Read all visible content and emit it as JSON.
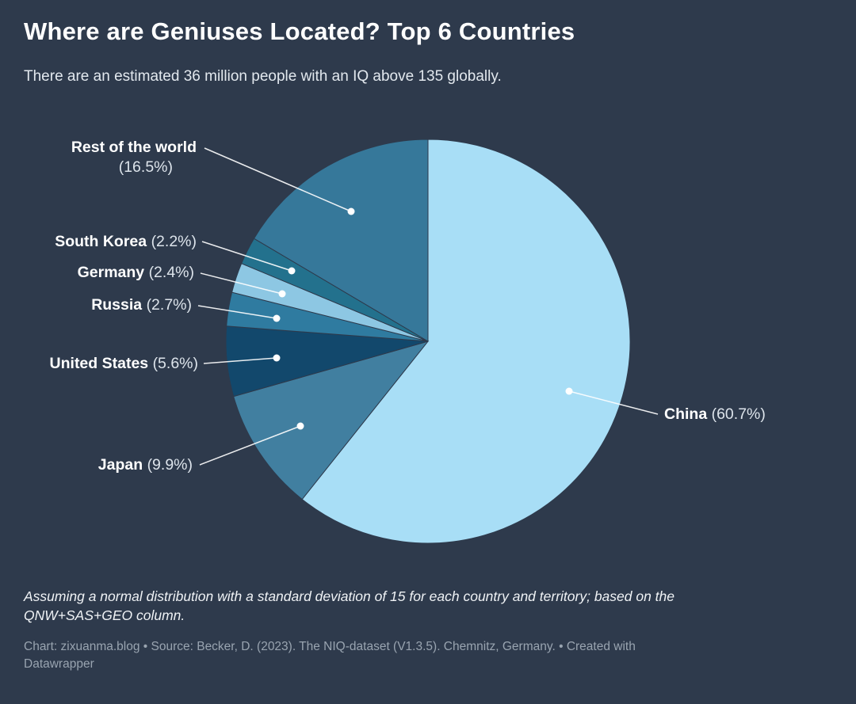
{
  "header": {
    "title": "Where are Geniuses Located? Top 6 Countries",
    "subtitle": "There are an estimated 36 million people with an IQ above 135 globally."
  },
  "chart_data": {
    "type": "pie",
    "title": "Where are Geniuses Located? Top 6 Countries",
    "subtitle": "There are an estimated 36 million people with an IQ above 135 globally.",
    "start_angle_deg": 0,
    "direction": "clockwise",
    "background": "#2e3a4c",
    "slices": [
      {
        "name": "China",
        "value": 60.7,
        "label": "(60.7%)",
        "color": "#a8def6"
      },
      {
        "name": "Japan",
        "value": 9.9,
        "label": "(9.9%)",
        "color": "#417fa0"
      },
      {
        "name": "United States",
        "value": 5.6,
        "label": "(5.6%)",
        "color": "#12486c"
      },
      {
        "name": "Russia",
        "value": 2.7,
        "label": "(2.7%)",
        "color": "#2f7ba0"
      },
      {
        "name": "Germany",
        "value": 2.4,
        "label": "(2.4%)",
        "color": "#8dc7e3"
      },
      {
        "name": "South Korea",
        "value": 2.2,
        "label": "(2.2%)",
        "color": "#23718d"
      },
      {
        "name": "Rest of the world",
        "value": 16.5,
        "label": "(16.5%)",
        "color": "#36789a"
      }
    ]
  },
  "footer": {
    "note": "Assuming a normal distribution with a standard deviation of 15 for each country and territory; based on the QNW+SAS+GEO column.",
    "attribution": "Chart: zixuanma.blog • Source: Becker, D. (2023). The NIQ-dataset (V1.3.5). Chemnitz, Germany. • Created with Datawrapper"
  }
}
